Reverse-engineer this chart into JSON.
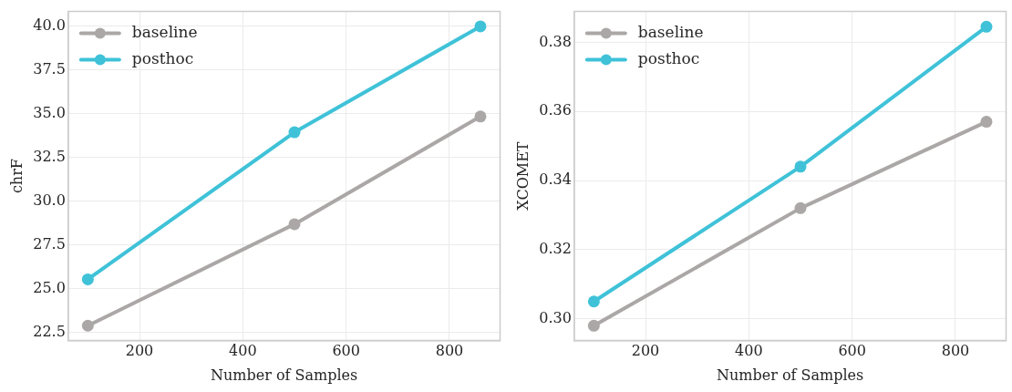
{
  "chart_data": [
    {
      "type": "line",
      "xlabel": "Number of Samples",
      "ylabel": "chrF",
      "x": [
        100,
        500,
        860
      ],
      "series": [
        {
          "name": "baseline",
          "color": "#aba7a7",
          "values": [
            22.9,
            28.7,
            34.85
          ]
        },
        {
          "name": "posthoc",
          "color": "#3fc2d8",
          "values": [
            25.55,
            33.95,
            40.0
          ]
        }
      ],
      "xlim": [
        62,
        898
      ],
      "xticks": [
        200,
        400,
        600,
        800
      ],
      "ylim": [
        22.05,
        40.85
      ],
      "yticks": [
        {
          "value": 22.5,
          "label": "22.5"
        },
        {
          "value": 25,
          "label": "25.0"
        },
        {
          "value": 27.5,
          "label": "27.5"
        },
        {
          "value": 30,
          "label": "30.0"
        },
        {
          "value": 32.5,
          "label": "32.5"
        },
        {
          "value": 35,
          "label": "35.0"
        },
        {
          "value": 37.5,
          "label": "37.5"
        },
        {
          "value": 40,
          "label": "40.0"
        }
      ],
      "grid": true,
      "legend": "top left",
      "marker": "circle",
      "line_style": "solid"
    },
    {
      "type": "line",
      "xlabel": "Number of Samples",
      "ylabel": "XCOMET",
      "x": [
        100,
        500,
        860
      ],
      "series": [
        {
          "name": "baseline",
          "color": "#aba7a7",
          "values": [
            0.298,
            0.332,
            0.357
          ]
        },
        {
          "name": "posthoc",
          "color": "#3fc2d8",
          "values": [
            0.305,
            0.344,
            0.3845
          ]
        }
      ],
      "xlim": [
        62,
        898
      ],
      "xticks": [
        200,
        400,
        600,
        800
      ],
      "ylim": [
        0.2937,
        0.3889
      ],
      "yticks": [
        {
          "value": 0.3,
          "label": "0.30"
        },
        {
          "value": 0.32,
          "label": "0.32"
        },
        {
          "value": 0.34,
          "label": "0.34"
        },
        {
          "value": 0.36,
          "label": "0.36"
        },
        {
          "value": 0.38,
          "label": "0.38"
        }
      ],
      "grid": true,
      "legend": "top left",
      "marker": "circle",
      "line_style": "solid"
    }
  ]
}
